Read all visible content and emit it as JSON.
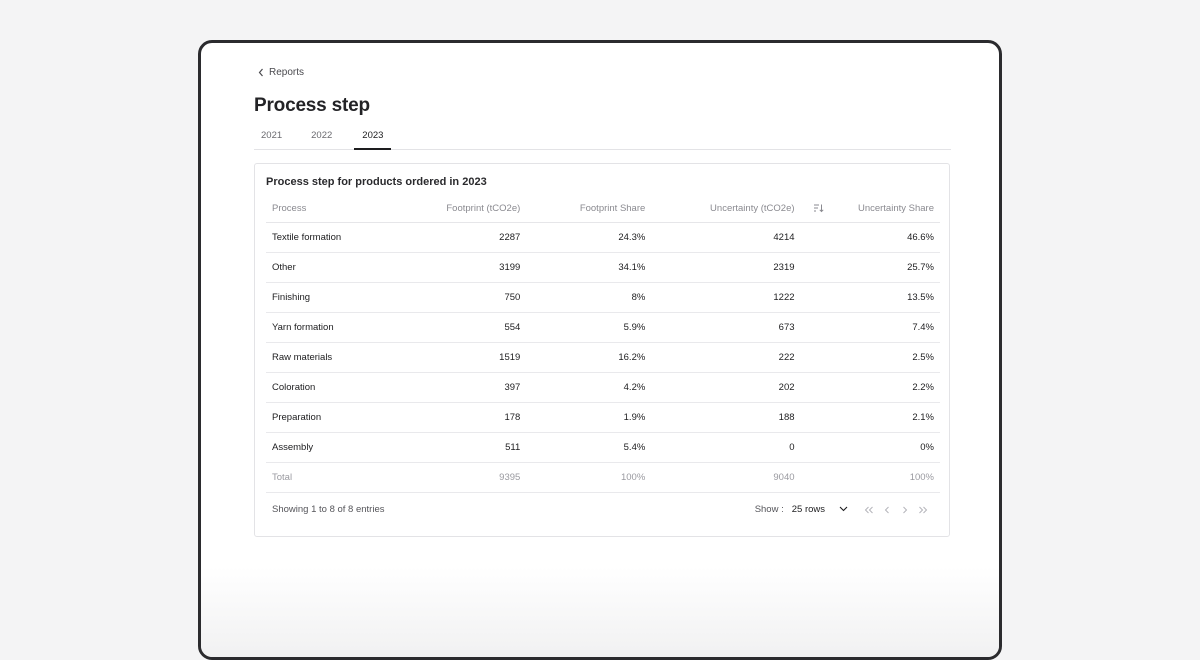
{
  "nav": {
    "back_label": "Reports"
  },
  "page": {
    "title": "Process step"
  },
  "tabs": [
    {
      "label": "2021",
      "active": false
    },
    {
      "label": "2022",
      "active": false
    },
    {
      "label": "2023",
      "active": true
    }
  ],
  "card": {
    "title": "Process step for products ordered in 2023",
    "columns": [
      "Process",
      "Footprint (tCO2e)",
      "Footprint Share",
      "Uncertainty (tCO2e)",
      "Uncertainty Share"
    ],
    "rows": [
      [
        "Textile formation",
        "2287",
        "24.3%",
        "4214",
        "46.6%"
      ],
      [
        "Other",
        "3199",
        "34.1%",
        "2319",
        "25.7%"
      ],
      [
        "Finishing",
        "750",
        "8%",
        "1222",
        "13.5%"
      ],
      [
        "Yarn formation",
        "554",
        "5.9%",
        "673",
        "7.4%"
      ],
      [
        "Raw materials",
        "1519",
        "16.2%",
        "222",
        "2.5%"
      ],
      [
        "Coloration",
        "397",
        "4.2%",
        "202",
        "2.2%"
      ],
      [
        "Preparation",
        "178",
        "1.9%",
        "188",
        "2.1%"
      ],
      [
        "Assembly",
        "511",
        "5.4%",
        "0",
        "0%"
      ]
    ],
    "total": [
      "Total",
      "9395",
      "100%",
      "9040",
      "100%"
    ]
  },
  "footer": {
    "entries_text": "Showing 1 to 8 of 8 entries",
    "show_label": "Show :",
    "rows_value": "25 rows"
  },
  "icons": {
    "back": "chevron-left-icon",
    "sort": "sort-descending-icon",
    "dropdown": "chevron-down-icon",
    "pager": [
      "first-page-icon",
      "prev-page-icon",
      "next-page-icon",
      "last-page-icon"
    ]
  }
}
